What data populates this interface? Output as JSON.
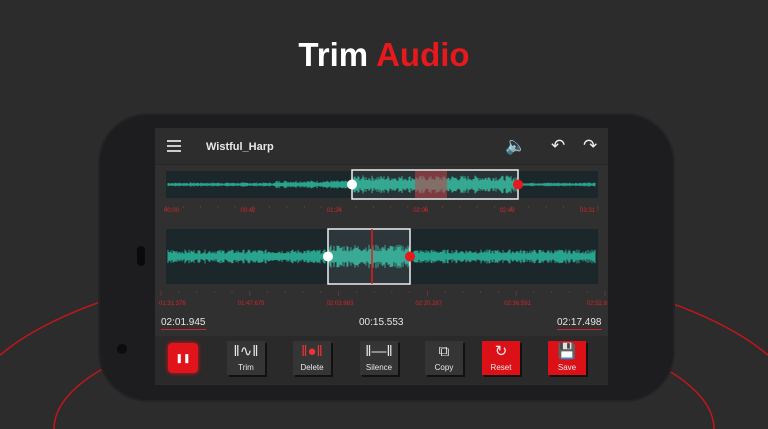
{
  "headline": {
    "word1": "Trim",
    "word2": "Audio"
  },
  "colors": {
    "accent": "#e8191d",
    "wave": "#2ec4a6",
    "background": "#2c2c2c"
  },
  "topbar": {
    "menu_icon": "hamburger-icon",
    "file_name": "Wistful_Harp",
    "volume_icon": "speaker-icon",
    "undo_icon": "undo-icon",
    "redo_icon": "redo-icon"
  },
  "overview": {
    "tick_labels": [
      "00:00",
      "00:42",
      "01:24",
      "02:06",
      "02:49",
      "03:31"
    ]
  },
  "detail": {
    "tick_labels": [
      "01:31.376",
      "01:47.679",
      "02:03.983",
      "02:20.287",
      "02:36.591",
      "02:52.8"
    ]
  },
  "times": {
    "start": "02:01.945",
    "duration": "00:15.553",
    "end": "02:17.498"
  },
  "toolbar": {
    "pause_icon": "pause-icon",
    "buttons": [
      {
        "label": "Trim",
        "icon": "trim-icon"
      },
      {
        "label": "Delete",
        "icon": "delete-icon"
      },
      {
        "label": "Silence",
        "icon": "silence-icon"
      },
      {
        "label": "Copy",
        "icon": "copy-icon"
      },
      {
        "label": "Reset",
        "icon": "reset-icon"
      },
      {
        "label": "Save",
        "icon": "save-icon"
      }
    ]
  }
}
